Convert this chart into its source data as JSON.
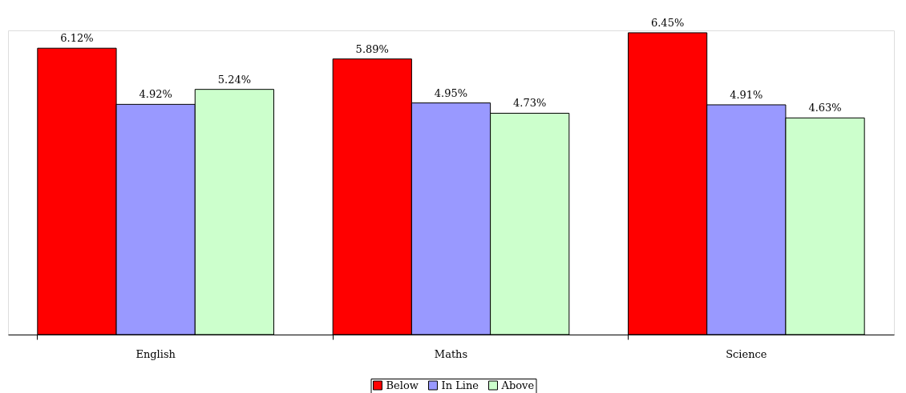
{
  "chart_data": {
    "type": "bar",
    "categories": [
      "English",
      "Maths",
      "Science"
    ],
    "series": [
      {
        "name": "Below",
        "color": "#ff0000",
        "values": [
          6.12,
          5.89,
          6.45
        ],
        "value_labels": [
          "6.12%",
          "5.89%",
          "6.45%"
        ]
      },
      {
        "name": "In Line",
        "color": "#9999ff",
        "values": [
          4.92,
          4.95,
          4.91
        ],
        "value_labels": [
          "4.92%",
          "4.95%",
          "4.91%"
        ]
      },
      {
        "name": "Above",
        "color": "#ccffcc",
        "values": [
          5.24,
          4.73,
          4.63
        ],
        "value_labels": [
          "5.24%",
          "4.73%",
          "4.63%"
        ]
      }
    ],
    "legend": "bottom",
    "grid": false
  }
}
